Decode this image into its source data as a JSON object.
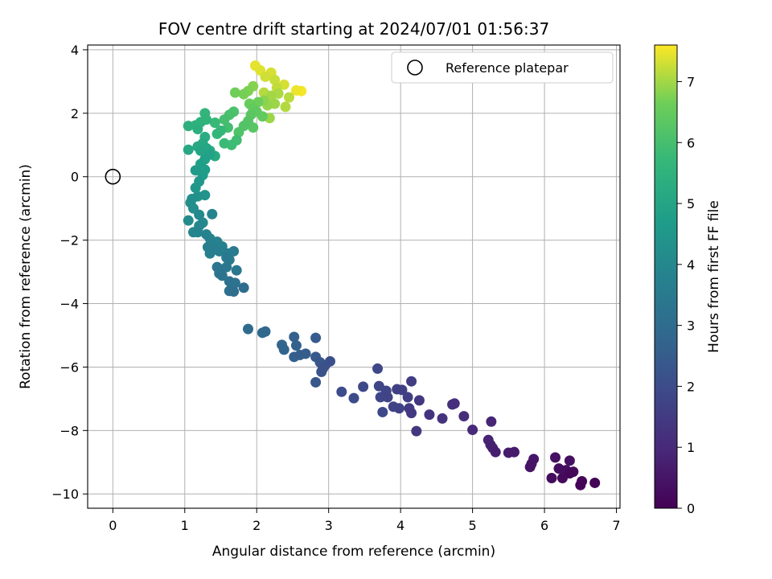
{
  "chart_data": {
    "type": "scatter",
    "title": "FOV centre drift starting at 2024/07/01 01:56:37",
    "xlabel": "Angular distance from reference (arcmin)",
    "ylabel": "Rotation from reference (arcmin)",
    "xlim": [
      -0.35,
      7.05
    ],
    "ylim": [
      -10.45,
      4.15
    ],
    "x_ticks": [
      0,
      1,
      2,
      3,
      4,
      5,
      6,
      7
    ],
    "y_ticks": [
      -10,
      -8,
      -6,
      -4,
      -2,
      0,
      2,
      4
    ],
    "grid": true,
    "legend": {
      "placement": "top-right",
      "entries": [
        "Reference platepar"
      ]
    },
    "reference_point": {
      "x": 0,
      "y": 0
    },
    "colorbar": {
      "label": "Hours from first FF file",
      "colormap": "viridis",
      "range": [
        0,
        7.6
      ],
      "ticks": [
        0,
        1,
        2,
        3,
        4,
        5,
        6,
        7
      ]
    },
    "points": [
      [
        6.7,
        -9.65,
        0.05
      ],
      [
        6.5,
        -9.72,
        0.1
      ],
      [
        6.52,
        -9.6,
        0.12
      ],
      [
        6.35,
        -9.35,
        0.15
      ],
      [
        6.4,
        -9.3,
        0.2
      ],
      [
        6.25,
        -9.5,
        0.22
      ],
      [
        6.1,
        -9.5,
        0.25
      ],
      [
        6.2,
        -9.2,
        0.3
      ],
      [
        6.3,
        -9.25,
        0.32
      ],
      [
        6.35,
        -8.95,
        0.36
      ],
      [
        6.15,
        -8.85,
        0.4
      ],
      [
        5.8,
        -9.15,
        0.45
      ],
      [
        5.82,
        -9.05,
        0.48
      ],
      [
        5.85,
        -8.9,
        0.52
      ],
      [
        5.58,
        -8.68,
        0.6
      ],
      [
        5.5,
        -8.7,
        0.65
      ],
      [
        5.32,
        -8.68,
        0.7
      ],
      [
        5.28,
        -8.55,
        0.75
      ],
      [
        5.25,
        -8.45,
        0.8
      ],
      [
        5.22,
        -8.3,
        0.85
      ],
      [
        5.26,
        -7.72,
        0.9
      ],
      [
        5.0,
        -7.98,
        1.0
      ],
      [
        4.88,
        -7.55,
        1.1
      ],
      [
        4.75,
        -7.15,
        1.15
      ],
      [
        4.72,
        -7.18,
        1.2
      ],
      [
        4.58,
        -7.62,
        1.25
      ],
      [
        4.4,
        -7.5,
        1.3
      ],
      [
        4.26,
        -7.05,
        1.35
      ],
      [
        4.22,
        -8.02,
        1.4
      ],
      [
        4.15,
        -7.45,
        1.45
      ],
      [
        4.12,
        -7.3,
        1.5
      ],
      [
        4.15,
        -6.45,
        1.55
      ],
      [
        4.1,
        -6.95,
        1.6
      ],
      [
        4.02,
        -6.72,
        1.62
      ],
      [
        3.95,
        -6.7,
        1.65
      ],
      [
        3.98,
        -7.3,
        1.7
      ],
      [
        3.9,
        -7.25,
        1.72
      ],
      [
        3.82,
        -6.95,
        1.75
      ],
      [
        3.8,
        -6.75,
        1.78
      ],
      [
        3.7,
        -6.6,
        1.8
      ],
      [
        3.72,
        -6.95,
        1.82
      ],
      [
        3.68,
        -6.05,
        1.85
      ],
      [
        3.75,
        -7.42,
        1.88
      ],
      [
        3.48,
        -6.62,
        1.9
      ],
      [
        3.35,
        -6.98,
        1.95
      ],
      [
        3.18,
        -6.78,
        2.0
      ],
      [
        3.02,
        -5.82,
        2.1
      ],
      [
        2.92,
        -6.05,
        2.15
      ],
      [
        2.9,
        -6.15,
        2.2
      ],
      [
        2.95,
        -5.95,
        2.25
      ],
      [
        2.88,
        -5.85,
        2.3
      ],
      [
        2.82,
        -6.48,
        2.35
      ],
      [
        2.82,
        -5.68,
        2.4
      ],
      [
        2.82,
        -5.08,
        2.45
      ],
      [
        2.68,
        -5.58,
        2.5
      ],
      [
        2.6,
        -5.62,
        2.55
      ],
      [
        2.52,
        -5.68,
        2.6
      ],
      [
        2.52,
        -5.05,
        2.65
      ],
      [
        2.55,
        -5.32,
        2.7
      ],
      [
        2.38,
        -5.45,
        2.75
      ],
      [
        2.35,
        -5.3,
        2.8
      ],
      [
        2.12,
        -4.88,
        2.85
      ],
      [
        2.08,
        -4.92,
        2.9
      ],
      [
        1.88,
        -4.8,
        2.95
      ],
      [
        1.82,
        -3.5,
        3.05
      ],
      [
        1.68,
        -3.62,
        3.1
      ],
      [
        1.62,
        -3.6,
        3.15
      ],
      [
        1.7,
        -3.35,
        3.2
      ],
      [
        1.62,
        -3.3,
        3.22
      ],
      [
        1.52,
        -3.12,
        3.3
      ],
      [
        1.48,
        -3.05,
        3.32
      ],
      [
        1.45,
        -2.85,
        3.35
      ],
      [
        1.52,
        -2.92,
        3.38
      ],
      [
        1.58,
        -2.85,
        3.4
      ],
      [
        1.72,
        -2.95,
        3.42
      ],
      [
        1.62,
        -2.62,
        3.48
      ],
      [
        1.58,
        -2.55,
        3.5
      ],
      [
        1.68,
        -2.35,
        3.55
      ],
      [
        1.6,
        -2.42,
        3.58
      ],
      [
        1.48,
        -2.35,
        3.6
      ],
      [
        1.4,
        -2.3,
        3.65
      ],
      [
        1.35,
        -2.42,
        3.68
      ],
      [
        1.32,
        -2.22,
        3.7
      ],
      [
        1.38,
        -2.12,
        3.72
      ],
      [
        1.45,
        -2.05,
        3.75
      ],
      [
        1.52,
        -2.2,
        3.78
      ],
      [
        1.35,
        -1.95,
        3.8
      ],
      [
        1.3,
        -1.82,
        3.85
      ],
      [
        1.38,
        -1.18,
        3.88
      ],
      [
        1.18,
        -1.75,
        3.9
      ],
      [
        1.12,
        -1.75,
        3.92
      ],
      [
        1.2,
        -1.55,
        3.95
      ],
      [
        1.25,
        -1.45,
        4.0
      ],
      [
        1.2,
        -1.2,
        4.05
      ],
      [
        1.05,
        -1.38,
        4.1
      ],
      [
        1.12,
        -1.0,
        4.2
      ],
      [
        1.08,
        -0.82,
        4.25
      ],
      [
        1.1,
        -0.7,
        4.3
      ],
      [
        1.18,
        -0.62,
        4.35
      ],
      [
        1.28,
        -0.58,
        4.4
      ],
      [
        1.15,
        -0.35,
        4.5
      ],
      [
        1.2,
        -0.15,
        4.55
      ],
      [
        1.15,
        0.2,
        4.65
      ],
      [
        1.25,
        0.05,
        4.7
      ],
      [
        1.28,
        0.22,
        4.75
      ],
      [
        1.22,
        0.4,
        4.8
      ],
      [
        1.28,
        0.55,
        4.85
      ],
      [
        1.35,
        0.7,
        4.9
      ],
      [
        1.22,
        0.82,
        5.0
      ],
      [
        1.3,
        0.9,
        5.05
      ],
      [
        1.05,
        0.85,
        5.1
      ],
      [
        1.18,
        0.95,
        5.12
      ],
      [
        1.25,
        1.05,
        5.15
      ],
      [
        1.42,
        0.65,
        5.2
      ],
      [
        1.35,
        0.82,
        5.25
      ],
      [
        1.28,
        1.25,
        5.3
      ],
      [
        1.18,
        1.5,
        5.35
      ],
      [
        1.05,
        1.6,
        5.4
      ],
      [
        1.15,
        1.62,
        5.45
      ],
      [
        1.22,
        1.72,
        5.5
      ],
      [
        1.3,
        1.8,
        5.55
      ],
      [
        1.28,
        2.0,
        5.6
      ],
      [
        1.45,
        1.35,
        5.65
      ],
      [
        1.5,
        1.45,
        5.7
      ],
      [
        1.42,
        1.7,
        5.75
      ],
      [
        1.55,
        1.05,
        5.8
      ],
      [
        1.65,
        1.0,
        5.85
      ],
      [
        1.72,
        1.15,
        5.9
      ],
      [
        1.6,
        1.55,
        5.95
      ],
      [
        1.55,
        1.8,
        6.0
      ],
      [
        1.62,
        1.95,
        6.05
      ],
      [
        1.68,
        2.05,
        6.1
      ],
      [
        1.75,
        1.4,
        6.15
      ],
      [
        1.82,
        1.6,
        6.2
      ],
      [
        1.88,
        1.75,
        6.25
      ],
      [
        1.95,
        1.55,
        6.3
      ],
      [
        1.92,
        1.95,
        6.35
      ],
      [
        2.0,
        2.05,
        6.4
      ],
      [
        2.08,
        1.9,
        6.45
      ],
      [
        1.95,
        2.15,
        6.5
      ],
      [
        1.9,
        2.3,
        6.55
      ],
      [
        2.02,
        2.35,
        6.6
      ],
      [
        1.7,
        2.65,
        6.65
      ],
      [
        1.82,
        2.6,
        6.7
      ],
      [
        1.88,
        2.7,
        6.75
      ],
      [
        1.95,
        2.85,
        6.8
      ],
      [
        2.1,
        2.4,
        6.85
      ],
      [
        2.15,
        2.25,
        6.9
      ],
      [
        2.25,
        2.3,
        6.95
      ],
      [
        2.2,
        2.55,
        7.0
      ],
      [
        2.3,
        2.62,
        7.05
      ],
      [
        2.4,
        2.2,
        7.1
      ],
      [
        2.45,
        2.5,
        7.15
      ],
      [
        2.28,
        2.8,
        7.2
      ],
      [
        2.25,
        3.05,
        7.25
      ],
      [
        2.12,
        3.15,
        7.3
      ],
      [
        2.2,
        3.28,
        7.35
      ],
      [
        2.05,
        3.35,
        7.4
      ],
      [
        1.98,
        3.5,
        7.45
      ],
      [
        2.55,
        2.72,
        7.5
      ],
      [
        2.62,
        2.7,
        7.55
      ],
      [
        2.38,
        2.9,
        7.35
      ],
      [
        2.1,
        2.65,
        7.12
      ],
      [
        2.18,
        1.85,
        6.95
      ]
    ]
  }
}
